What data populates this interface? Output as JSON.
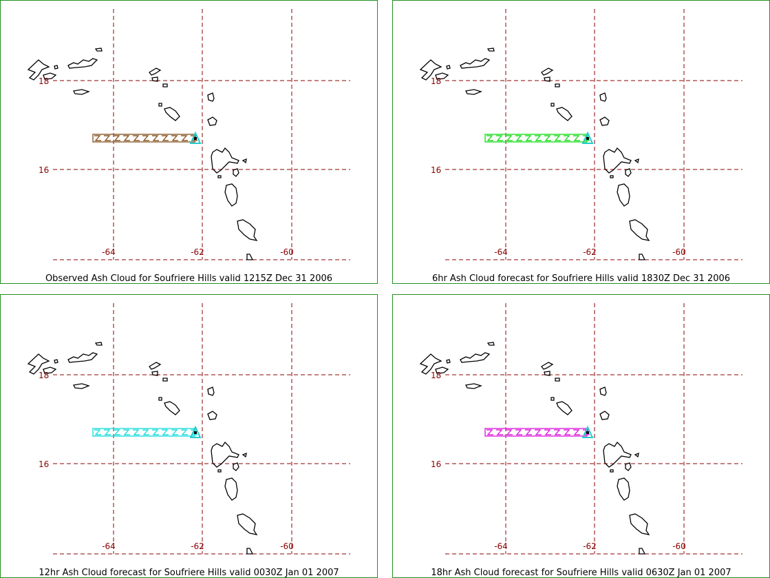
{
  "panels": [
    {
      "caption": "Observed Ash Cloud for Soufriere  Hills valid 1215Z Dec 31 2006",
      "cloud_color": "#8b5a2b"
    },
    {
      "caption": "6hr Ash Cloud forecast for Soufriere  Hills valid 1830Z Dec 31 2006",
      "cloud_color": "#22dd22"
    },
    {
      "caption": "12hr Ash Cloud forecast for Soufriere  Hills valid 0030Z Jan 01 2007",
      "cloud_color": "#22dddd"
    },
    {
      "caption": "18hr Ash Cloud forecast for Soufriere  Hills valid 0630Z Jan 01 2007",
      "cloud_color": "#dd22dd"
    }
  ],
  "lon_ticks": [
    "-64",
    "-62",
    "-60"
  ],
  "lat_ticks": [
    "18",
    "16"
  ],
  "volcano_marker_color": "#22cccc",
  "grid_color": "#8b0000",
  "coast_color": "#000000"
}
